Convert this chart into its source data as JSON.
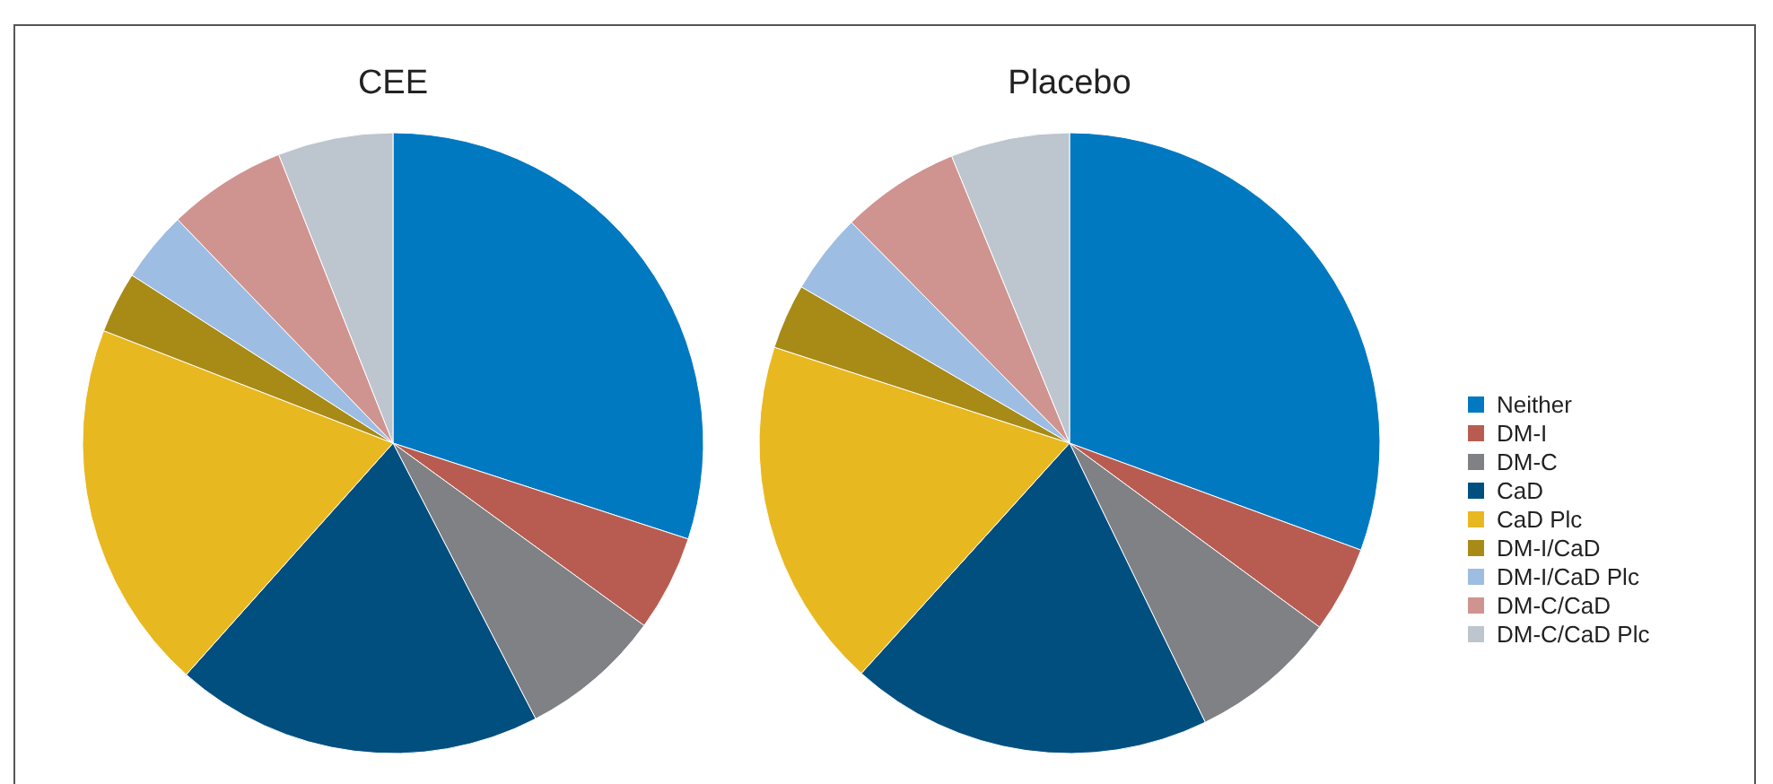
{
  "chart_data": {
    "type": "pie",
    "categories": [
      "Neither",
      "DM-I",
      "DM-C",
      "CaD",
      "CaD Plc",
      "DM-I/CaD",
      "DM-I/CaD Plc",
      "DM-C/CaD",
      "DM-C/CaD Plc"
    ],
    "colors": [
      "#0079c1",
      "#b85c52",
      "#7f8184",
      "#004f7f",
      "#e8b820",
      "#a88a17",
      "#9ebde3",
      "#d09490",
      "#bdc5ce"
    ],
    "legend": "right",
    "series": [
      {
        "name": "CEE",
        "values": [
          30.0,
          5.0,
          7.4,
          19.2,
          19.3,
          3.2,
          3.7,
          6.2,
          6.0
        ]
      },
      {
        "name": "Placebo",
        "values": [
          30.6,
          4.5,
          7.7,
          18.9,
          18.3,
          3.4,
          4.2,
          6.2,
          6.2
        ]
      }
    ]
  }
}
